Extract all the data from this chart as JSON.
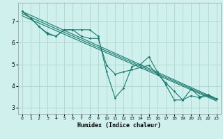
{
  "title": "",
  "xlabel": "Humidex (Indice chaleur)",
  "bg_color": "#cff0ec",
  "grid_color": "#aad8d0",
  "line_color": "#1a7a6e",
  "xlim": [
    -0.5,
    23.5
  ],
  "ylim": [
    2.7,
    7.85
  ],
  "yticks": [
    3,
    4,
    5,
    6,
    7
  ],
  "xticks": [
    0,
    1,
    2,
    3,
    4,
    5,
    6,
    7,
    8,
    9,
    10,
    11,
    12,
    13,
    14,
    15,
    16,
    17,
    18,
    19,
    20,
    21,
    22,
    23
  ],
  "series1_x": [
    0,
    1,
    2,
    3,
    4,
    5,
    6,
    7,
    8,
    9,
    10,
    11,
    12,
    13,
    14,
    15,
    16,
    17,
    18,
    19,
    20,
    21,
    22,
    23
  ],
  "series1_y": [
    7.45,
    7.15,
    6.75,
    6.45,
    6.3,
    6.6,
    6.6,
    6.6,
    6.6,
    6.3,
    4.65,
    3.45,
    3.9,
    4.9,
    5.0,
    5.35,
    4.65,
    4.05,
    3.35,
    3.35,
    3.85,
    3.5,
    3.6,
    3.4
  ],
  "series2_x": [
    0,
    1,
    2,
    3,
    4,
    5,
    6,
    7,
    8,
    9,
    10,
    11,
    12,
    13,
    14,
    15,
    16,
    17,
    18,
    19,
    20,
    21,
    22,
    23
  ],
  "series2_y": [
    7.45,
    7.15,
    6.75,
    6.4,
    6.3,
    6.6,
    6.6,
    6.3,
    6.2,
    6.2,
    4.95,
    4.55,
    4.65,
    4.75,
    4.85,
    4.95,
    4.55,
    4.15,
    3.75,
    3.35,
    3.55,
    3.45,
    3.55,
    3.4
  ],
  "trend1_x": [
    0,
    23
  ],
  "trend1_y": [
    7.45,
    3.4
  ],
  "trend2_x": [
    0,
    23
  ],
  "trend2_y": [
    7.35,
    3.35
  ],
  "trend3_x": [
    0,
    23
  ],
  "trend3_y": [
    7.25,
    3.3
  ]
}
